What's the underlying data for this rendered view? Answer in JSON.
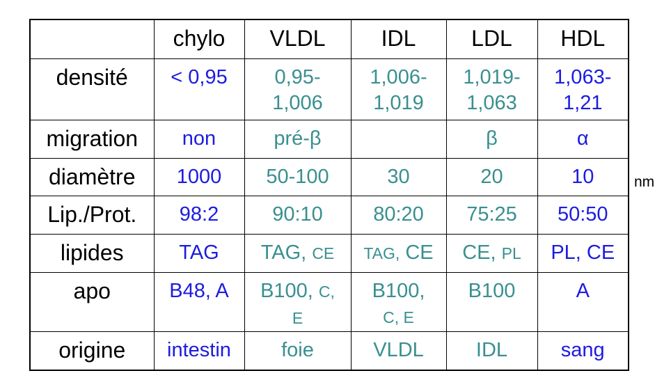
{
  "table": {
    "header": [
      "chylo",
      "VLDL",
      "IDL",
      "LDL",
      "HDL"
    ],
    "rows": [
      {
        "label": "densité",
        "cells": [
          [
            "< 0,95"
          ],
          [
            "0,95-",
            "1,006"
          ],
          [
            "1,006-",
            "1,019"
          ],
          [
            "1,019-",
            "1,063"
          ],
          [
            "1,063-",
            "1,21"
          ]
        ]
      },
      {
        "label": "migration",
        "cells": [
          [
            "non"
          ],
          [
            "pré-β"
          ],
          [],
          [
            "β"
          ],
          [
            "α"
          ]
        ]
      },
      {
        "label": "diamètre",
        "cells": [
          [
            "1000"
          ],
          [
            "50-100"
          ],
          [
            "30"
          ],
          [
            "20"
          ],
          [
            "10"
          ]
        ]
      },
      {
        "label": "Lip./Prot.",
        "cells": [
          [
            "98:2"
          ],
          [
            "90:10"
          ],
          [
            "80:20"
          ],
          [
            "75:25"
          ],
          [
            "50:50"
          ]
        ]
      },
      {
        "label": "lipides",
        "cells": [
          [
            "TAG"
          ],
          [
            "TAG,",
            "CE"
          ],
          [
            "TAG,",
            "CE"
          ],
          [
            "CE,",
            "PL"
          ],
          [
            "PL, CE"
          ]
        ]
      },
      {
        "label": "apo",
        "cells": [
          [
            "B48, A"
          ],
          [
            "B100,",
            "C,",
            "E"
          ],
          [
            "B100,",
            "C, E"
          ],
          [
            "B100"
          ],
          [
            "A"
          ]
        ]
      },
      {
        "label": "origine",
        "cells": [
          [
            "intestin"
          ],
          [
            "foie"
          ],
          [
            "VLDL"
          ],
          [
            "IDL"
          ],
          [
            "sang"
          ]
        ]
      }
    ],
    "unit": "nm"
  }
}
